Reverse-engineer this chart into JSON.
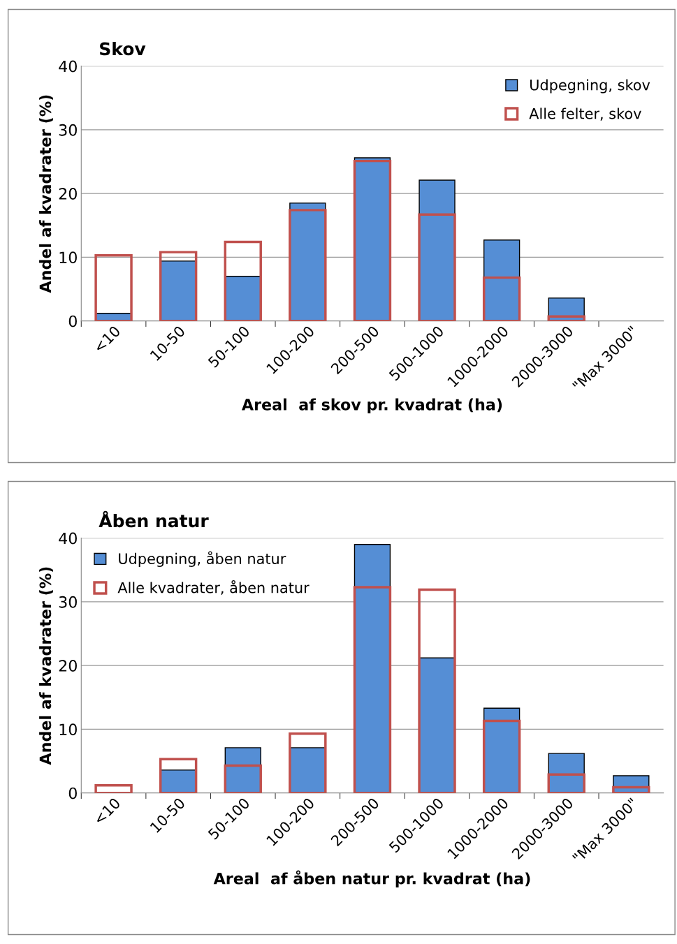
{
  "chart_data": [
    {
      "type": "bar",
      "title": "Skov",
      "xlabel": "Areal  af skov pr. kvadrat (ha)",
      "ylabel": "Andel af kvadrater (%)",
      "categories": [
        "<10",
        "10-50",
        "50-100",
        "100-200",
        "200-500",
        "500-1000",
        "1000-2000",
        "2000-3000",
        "\"Max 3000\""
      ],
      "series": [
        {
          "name": "Udpegning, skov",
          "color": "#558ed5",
          "values": [
            1.2,
            9.4,
            7.0,
            18.5,
            25.6,
            22.1,
            12.7,
            3.6,
            null
          ]
        },
        {
          "name": "Alle felter, skov",
          "color": "#c0504d",
          "values": [
            10.3,
            10.8,
            12.4,
            17.4,
            25.1,
            16.7,
            6.8,
            0.7,
            null
          ]
        }
      ],
      "ylim": [
        0,
        40
      ],
      "yticks": [
        0,
        10,
        20,
        30,
        40
      ],
      "grid": "y",
      "legend": "top right"
    },
    {
      "type": "bar",
      "title": "Åben natur",
      "xlabel": "Areal  af åben natur pr. kvadrat (ha)",
      "ylabel": "Andel af kvadrater (%)",
      "categories": [
        "<10",
        "10-50",
        "50-100",
        "100-200",
        "200-500",
        "500-1000",
        "1000-2000",
        "2000-3000",
        "\"Max 3000\""
      ],
      "series": [
        {
          "name": "Udpegning, åben natur",
          "color": "#558ed5",
          "values": [
            null,
            3.6,
            7.1,
            7.1,
            39.0,
            21.2,
            13.3,
            6.2,
            2.7
          ]
        },
        {
          "name": "Alle kvadrater, åben natur",
          "color": "#c0504d",
          "values": [
            1.2,
            5.3,
            4.3,
            9.3,
            32.3,
            31.9,
            11.3,
            2.9,
            0.9
          ]
        }
      ],
      "ylim": [
        0,
        40
      ],
      "yticks": [
        0,
        10,
        20,
        30,
        40
      ],
      "grid": "y",
      "legend": "top left"
    }
  ]
}
